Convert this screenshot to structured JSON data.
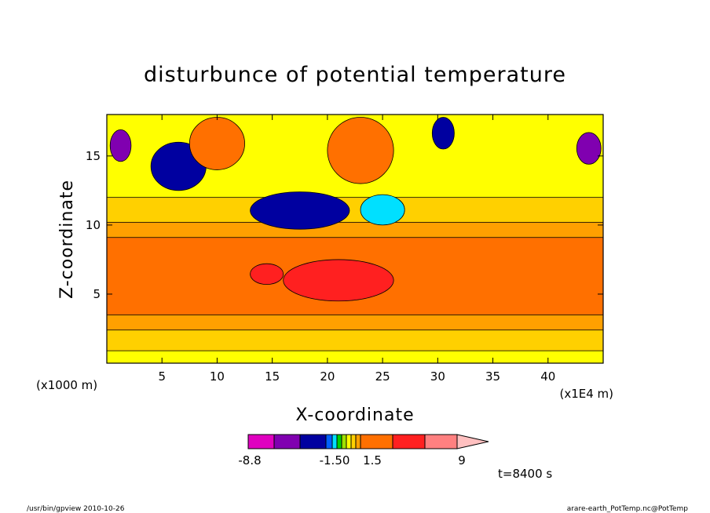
{
  "chart_data": {
    "type": "heatmap",
    "title": "disturbunce of potential temperature",
    "xlabel": "X-coordinate",
    "ylabel": "Z-coordinate",
    "x_unit_left": "(x1000 m)",
    "x_unit_right": "(x1E4 m)",
    "xlim": [
      0,
      45
    ],
    "ylim": [
      0,
      18
    ],
    "x_ticks": [
      {
        "value": 5,
        "label": "5"
      },
      {
        "value": 10,
        "label": "10"
      },
      {
        "value": 15,
        "label": "15"
      },
      {
        "value": 20,
        "label": "20"
      },
      {
        "value": 25,
        "label": "25"
      },
      {
        "value": 30,
        "label": "30"
      },
      {
        "value": 35,
        "label": "35"
      },
      {
        "value": 40,
        "label": "40"
      }
    ],
    "y_ticks": [
      {
        "value": 5,
        "label": "5"
      },
      {
        "value": 10,
        "label": "10"
      },
      {
        "value": 15,
        "label": "15"
      }
    ],
    "colorbar": {
      "bins": [
        {
          "color": "#e000c0"
        },
        {
          "color": "#8000b0"
        },
        {
          "color": "#0000a0"
        },
        {
          "color": "#0060ff"
        },
        {
          "color": "#00e0ff"
        },
        {
          "color": "#00d000"
        },
        {
          "color": "#a0e000"
        },
        {
          "color": "#ffff00"
        },
        {
          "color": "#ffd000"
        },
        {
          "color": "#ffa000"
        },
        {
          "color": "#ff7000"
        },
        {
          "color": "#ff2020"
        },
        {
          "color": "#ff8080"
        },
        {
          "color": "#ffc0c0"
        }
      ],
      "labels": [
        {
          "label": "-8.8"
        },
        {
          "label": "-1.50"
        },
        {
          "label": "1.5"
        },
        {
          "label": "9"
        }
      ]
    },
    "regions": [
      {
        "color": "#ffff00",
        "x": [
          0,
          45
        ],
        "y": [
          0,
          18
        ]
      },
      {
        "color": "#ffd000",
        "x": [
          0,
          45
        ],
        "y": [
          0.9,
          12
        ]
      },
      {
        "color": "#ffa000",
        "x": [
          0,
          45
        ],
        "y": [
          2.4,
          10.2
        ]
      },
      {
        "color": "#ff7000",
        "x": [
          0,
          45
        ],
        "y": [
          3.5,
          9.1
        ]
      },
      {
        "color": "#ff2020",
        "x": [
          16,
          26
        ],
        "y": [
          4.5,
          7.5
        ]
      },
      {
        "color": "#ff2020",
        "x": [
          13,
          16
        ],
        "y": [
          5.7,
          7.2
        ]
      },
      {
        "color": "#0000a0",
        "x": [
          13,
          22
        ],
        "y": [
          9.7,
          12.4
        ]
      },
      {
        "color": "#00e0ff",
        "x": [
          23,
          27
        ],
        "y": [
          10.0,
          12.2
        ]
      },
      {
        "color": "#8000b0",
        "x": [
          0.3,
          2.2
        ],
        "y": [
          14.6,
          16.9
        ]
      },
      {
        "color": "#8000b0",
        "x": [
          42.6,
          44.8
        ],
        "y": [
          14.4,
          16.7
        ]
      },
      {
        "color": "#0000a0",
        "x": [
          4,
          9
        ],
        "y": [
          12.5,
          16
        ]
      },
      {
        "color": "#ff7000",
        "x": [
          7.5,
          12.5
        ],
        "y": [
          14,
          17.8
        ]
      },
      {
        "color": "#ff7000",
        "x": [
          20,
          26
        ],
        "y": [
          13,
          17.8
        ]
      },
      {
        "color": "#0000a0",
        "x": [
          29.5,
          31.5
        ],
        "y": [
          15.5,
          17.8
        ]
      }
    ],
    "annotation": "t=8400 s"
  },
  "footer": {
    "left": "/usr/bin/gpview  2010-10-26",
    "right": "arare-earth_PotTemp.nc@PotTemp"
  }
}
